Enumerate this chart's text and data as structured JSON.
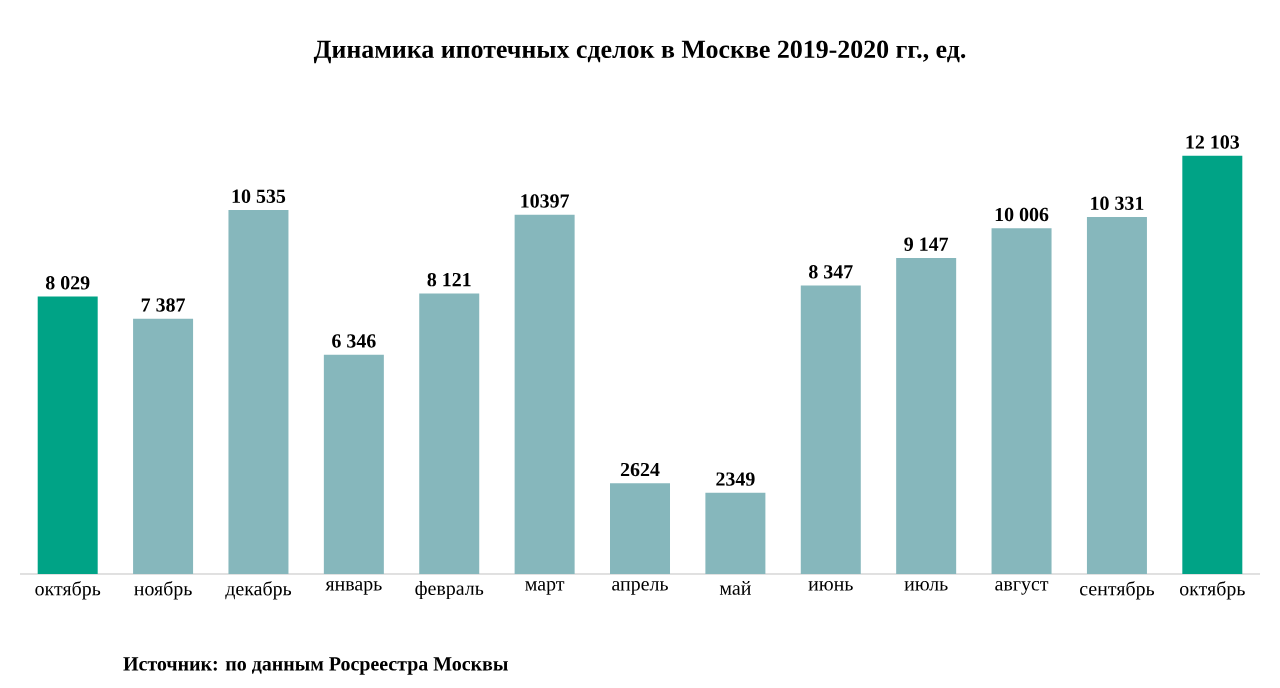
{
  "chart_data": {
    "type": "bar",
    "title": "Динамика ипотечных сделок в Москве 2019-2020 гг., ед.",
    "categories": [
      "октябрь",
      "ноябрь",
      "декабрь",
      "январь",
      "февраль",
      "март",
      "апрель",
      "май",
      "июнь",
      "июль",
      "август",
      "сентябрь",
      "октябрь"
    ],
    "values": [
      8029,
      7387,
      10535,
      6346,
      8121,
      10397,
      2624,
      2349,
      8347,
      9147,
      10006,
      10331,
      12103
    ],
    "value_labels": [
      "8 029",
      "7 387",
      "10 535",
      "6 346",
      "8 121",
      "10397",
      "2624",
      "2349",
      "8 347",
      "9 147",
      "10 006",
      "10 331",
      "12 103"
    ],
    "colors": [
      "#00a386",
      "#86b7bc",
      "#86b7bc",
      "#86b7bc",
      "#86b7bc",
      "#86b7bc",
      "#86b7bc",
      "#86b7bc",
      "#86b7bc",
      "#86b7bc",
      "#86b7bc",
      "#86b7bc",
      "#00a386"
    ],
    "annotations": [
      "Источник: по данным Росреестра Москвы"
    ]
  }
}
